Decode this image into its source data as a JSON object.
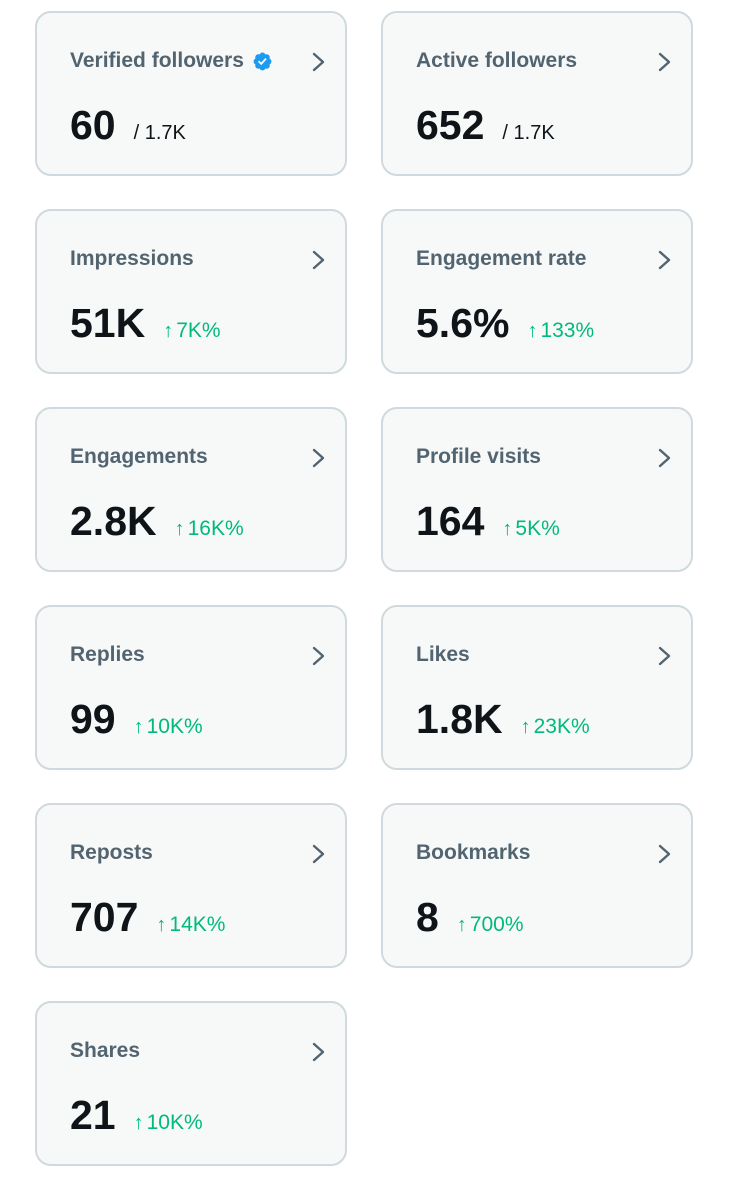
{
  "cards": [
    {
      "label": "Verified followers",
      "value": "60",
      "total": "/ 1.7K",
      "verified": true
    },
    {
      "label": "Active followers",
      "value": "652",
      "total": "/ 1.7K"
    },
    {
      "label": "Impressions",
      "value": "51K",
      "change": "7K%"
    },
    {
      "label": "Engagement rate",
      "value": "5.6%",
      "change": "133%"
    },
    {
      "label": "Engagements",
      "value": "2.8K",
      "change": "16K%"
    },
    {
      "label": "Profile visits",
      "value": "164",
      "change": "5K%"
    },
    {
      "label": "Replies",
      "value": "99",
      "change": "10K%"
    },
    {
      "label": "Likes",
      "value": "1.8K",
      "change": "23K%"
    },
    {
      "label": "Reposts",
      "value": "707",
      "change": "14K%"
    },
    {
      "label": "Bookmarks",
      "value": "8",
      "change": "700%"
    },
    {
      "label": "Shares",
      "value": "21",
      "change": "10K%"
    }
  ],
  "icons": {
    "arrow": "↑",
    "chevron": "chevron-right-icon",
    "verified": "verified-badge-icon"
  },
  "colors": {
    "card_background": "#f7f9f9",
    "card_border": "#cfd9de",
    "label": "#536471",
    "value": "#0f1419",
    "positive_change": "#00ba7c",
    "verified_badge": "#1d9bf0"
  }
}
